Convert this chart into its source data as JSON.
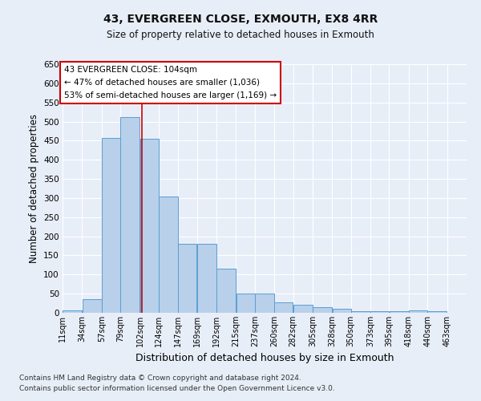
{
  "title": "43, EVERGREEN CLOSE, EXMOUTH, EX8 4RR",
  "subtitle": "Size of property relative to detached houses in Exmouth",
  "xlabel": "Distribution of detached houses by size in Exmouth",
  "ylabel": "Number of detached properties",
  "footnote1": "Contains HM Land Registry data © Crown copyright and database right 2024.",
  "footnote2": "Contains public sector information licensed under the Open Government Licence v3.0.",
  "annotation_line1": "43 EVERGREEN CLOSE: 104sqm",
  "annotation_line2": "← 47% of detached houses are smaller (1,036)",
  "annotation_line3": "53% of semi-detached houses are larger (1,169) →",
  "bar_left_edges": [
    11,
    34,
    57,
    79,
    102,
    124,
    147,
    169,
    192,
    215,
    237,
    260,
    282,
    305,
    328,
    350,
    373,
    395,
    418,
    440
  ],
  "bar_widths": [
    23,
    23,
    22,
    23,
    22,
    23,
    22,
    23,
    23,
    22,
    23,
    22,
    23,
    23,
    22,
    23,
    22,
    23,
    22,
    23
  ],
  "bar_heights": [
    7,
    35,
    458,
    512,
    456,
    305,
    180,
    180,
    116,
    50,
    50,
    27,
    20,
    14,
    10,
    5,
    5,
    5,
    7,
    5
  ],
  "bar_color": "#b8d0ea",
  "bar_edge_color": "#5a9fd4",
  "reference_line_x": 104,
  "reference_line_color": "#cc0000",
  "ylim": [
    0,
    650
  ],
  "yticks": [
    0,
    50,
    100,
    150,
    200,
    250,
    300,
    350,
    400,
    450,
    500,
    550,
    600,
    650
  ],
  "x_tick_labels": [
    "11sqm",
    "34sqm",
    "57sqm",
    "79sqm",
    "102sqm",
    "124sqm",
    "147sqm",
    "169sqm",
    "192sqm",
    "215sqm",
    "237sqm",
    "260sqm",
    "282sqm",
    "305sqm",
    "328sqm",
    "350sqm",
    "373sqm",
    "395sqm",
    "418sqm",
    "440sqm",
    "463sqm"
  ],
  "x_tick_positions": [
    11,
    34,
    57,
    79,
    102,
    124,
    147,
    169,
    192,
    215,
    237,
    260,
    282,
    305,
    328,
    350,
    373,
    395,
    418,
    440,
    463
  ],
  "bg_color": "#e8eef8",
  "plot_bg_color": "#e8eef8",
  "grid_color": "#ffffff",
  "annotation_box_edge_color": "#cc0000",
  "annotation_box_fill": "#ffffff"
}
